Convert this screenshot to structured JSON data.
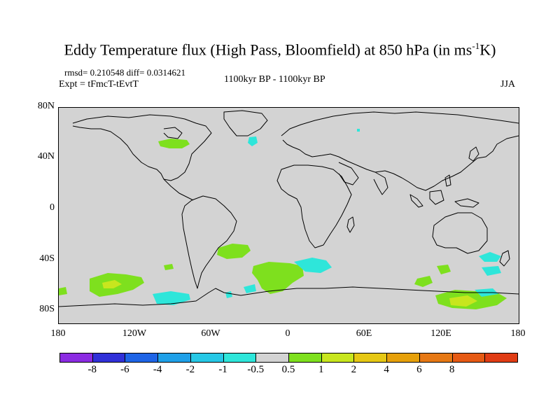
{
  "title": {
    "main": "Eddy Temperature flux (High Pass, Bloomfield) at 850 hPa (in ms",
    "superscript": "-1",
    "unit_end": "K)"
  },
  "stats": "rmsd= 0.210548 diff= 0.0314621",
  "experiment": "Expt = tFmcT-tEvtT",
  "period": "1100kyr BP - 1100kyr BP",
  "season": "JJA",
  "y_ticks": [
    "80N",
    "40N",
    "0",
    "40S",
    "80S"
  ],
  "x_ticks": [
    "180",
    "120W",
    "60W",
    "0",
    "60E",
    "120E",
    "180"
  ],
  "colorbar": {
    "colors": [
      "#8b2be2",
      "#3030d8",
      "#1e64e6",
      "#1fa0e8",
      "#26c8e6",
      "#2ee6da",
      "#d3d3d3",
      "#7ee01e",
      "#c8e61e",
      "#e6c814",
      "#e6a00a",
      "#e67814",
      "#e65a14",
      "#e03c14"
    ],
    "labels": [
      "-8",
      "-6",
      "-4",
      "-2",
      "-1",
      "-0.5",
      "0.5",
      "1",
      "2",
      "4",
      "6",
      "8"
    ]
  },
  "palette": {
    "ocean": "#d3d3d3",
    "green": "#7ee01e",
    "yellow": "#c8e61e",
    "cyan": "#2ee6da"
  }
}
